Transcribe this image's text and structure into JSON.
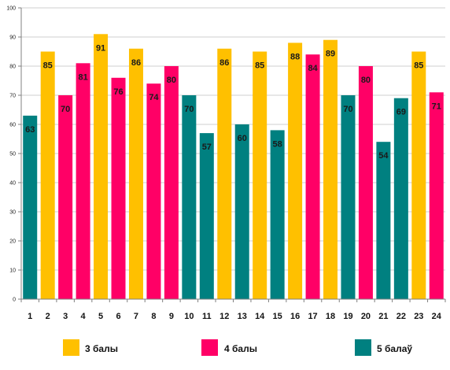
{
  "colors": {
    "3": "#FFC000",
    "4": "#FF0066",
    "5": "#008080",
    "grid": "#CFCFCF",
    "axis": "#808080"
  },
  "chart_data": {
    "type": "bar",
    "categories": [
      "1",
      "2",
      "3",
      "4",
      "5",
      "6",
      "7",
      "8",
      "9",
      "10",
      "11",
      "12",
      "13",
      "14",
      "15",
      "16",
      "17",
      "18",
      "19",
      "20",
      "21",
      "22",
      "23",
      "24"
    ],
    "values": [
      63,
      85,
      70,
      81,
      91,
      76,
      86,
      74,
      80,
      70,
      57,
      86,
      60,
      85,
      58,
      88,
      84,
      89,
      70,
      80,
      54,
      69,
      85,
      71
    ],
    "groups": [
      "5",
      "3",
      "4",
      "4",
      "3",
      "4",
      "3",
      "4",
      "4",
      "5",
      "5",
      "3",
      "5",
      "3",
      "5",
      "3",
      "4",
      "3",
      "5",
      "4",
      "5",
      "5",
      "3",
      "4"
    ],
    "legend": [
      {
        "key": "3",
        "label": "3 балы"
      },
      {
        "key": "4",
        "label": "4 балы"
      },
      {
        "key": "5",
        "label": "5 балаў"
      }
    ],
    "ylim": [
      0,
      100
    ],
    "yticks": [
      0,
      10,
      20,
      30,
      40,
      50,
      60,
      70,
      80,
      90,
      100
    ],
    "grid": true,
    "legend_position": "bottom"
  }
}
